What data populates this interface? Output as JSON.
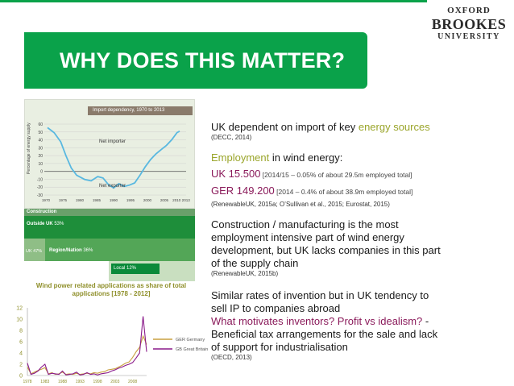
{
  "header": {
    "title": "WHY DOES THIS MATTER?"
  },
  "logo": {
    "line1": "OXFORD",
    "line2": "BROOKES",
    "line3": "UNIVERSITY"
  },
  "import_chart": {
    "header": "Import dependency, 1970 to 2013",
    "ylabel": "Percentage of energy supply",
    "annot_importer": "Net importer",
    "annot_exporter": "Net exporter",
    "y_ticks": [
      "60",
      "50",
      "40",
      "30",
      "20",
      "10",
      "0",
      "-10",
      "-20",
      "-30"
    ],
    "x_ticks": [
      "1970",
      "1975",
      "1980",
      "1985",
      "1990",
      "1995",
      "2000",
      "2005",
      "2010 2013"
    ]
  },
  "construction": {
    "heading": "Construction",
    "outside_label": "Outside UK",
    "outside_pct": "53%",
    "uk_label": "UK 47%",
    "region_label": "Region/Nation",
    "region_pct": "36%",
    "local_label": "Local 12%"
  },
  "chart_data": {
    "type": "line",
    "title": "Wind power related applications as share of total applications [1978 - 2012]",
    "x": [
      1978,
      1979,
      1980,
      1981,
      1982,
      1983,
      1984,
      1985,
      1986,
      1987,
      1988,
      1989,
      1990,
      1991,
      1992,
      1993,
      1994,
      1995,
      1996,
      1997,
      1998,
      1999,
      2000,
      2001,
      2002,
      2003,
      2004,
      2005,
      2006,
      2007,
      2008,
      2009,
      2010,
      2011,
      2012
    ],
    "series": [
      {
        "name": "GER Germany",
        "color": "#c8a040",
        "values": [
          1.5,
          0.3,
          0.6,
          0.9,
          1.1,
          1.4,
          0.3,
          0.5,
          0.2,
          0.3,
          0.6,
          0.2,
          0.3,
          0.2,
          0.4,
          0.2,
          0.3,
          0.4,
          0.3,
          0.5,
          0.4,
          0.6,
          0.7,
          1.0,
          1.1,
          1.2,
          1.5,
          1.8,
          2.2,
          2.4,
          3.2,
          4.2,
          5.0,
          7.0,
          5.5
        ]
      },
      {
        "name": "GB Great Britain",
        "color": "#8a1a8a",
        "values": [
          2.2,
          0.2,
          0.4,
          0.8,
          1.5,
          2.0,
          0.2,
          0.4,
          0.3,
          0.2,
          0.8,
          0.1,
          0.2,
          0.3,
          0.6,
          0.1,
          0.2,
          0.5,
          0.2,
          0.3,
          0.1,
          0.3,
          0.4,
          0.5,
          0.8,
          1.0,
          1.3,
          1.5,
          1.8,
          2.0,
          2.3,
          3.1,
          4.0,
          10.5,
          4.2
        ]
      }
    ],
    "ylim": [
      0,
      12
    ],
    "y_ticks": [
      "0",
      "2",
      "4",
      "6",
      "8",
      "10",
      "12"
    ],
    "x_ticks": [
      "1978",
      "1983",
      "1988",
      "1993",
      "1998",
      "2003",
      "2008"
    ]
  },
  "text": {
    "b1_line": "UK dependent on import of key ",
    "b1_accent": "energy sources",
    "b1_cite": "(DECC, 2014)",
    "b2_prefix_accent": "Employment",
    "b2_suffix": " in wind energy:",
    "uk_figure": "UK 15.500",
    "uk_detail": " [2014/15 – 0.05% of about 29.5m employed total]",
    "ger_figure": "GER 149.200",
    "ger_detail": " [2014 – 0.4% of about 38.9m employed total]",
    "b2_cite": "(RenewableUK, 2015a; O’Sullivan et al., 2015; Eurostat, 2015)",
    "b3_line1": "Construction / manufacturing is the most",
    "b3_line2": "employment intensive part of wind energy",
    "b3_line3": "development, but UK lacks companies in this part",
    "b3_line4": "of the supply chain",
    "b3_cite": "(RenewableUK, 2015b)",
    "b4_line1": "Similar rates of invention but in UK tendency to",
    "b4_line2": "sell IP to companies abroad",
    "b4_question": "What motivates inventors? Profit vs idealism?",
    "b4_dash": "  -",
    "b4_line4": "Beneficial tax arrangements for the sale and lack",
    "b4_line5": "of support for industrialisation",
    "b4_cite": "(OECD, 2013)"
  }
}
